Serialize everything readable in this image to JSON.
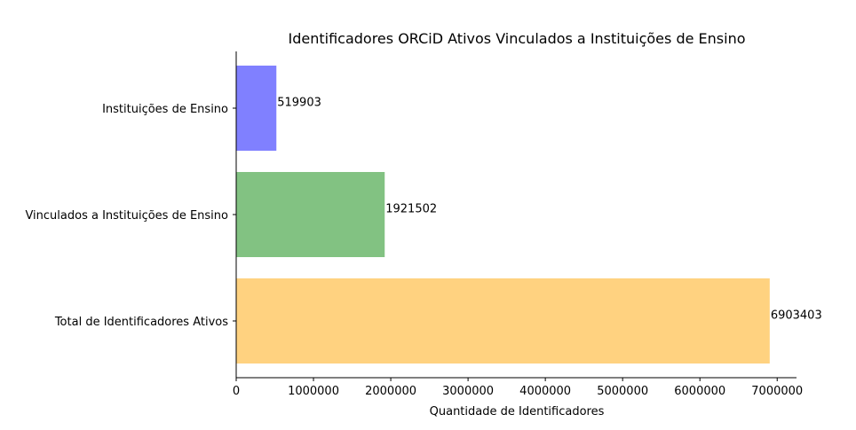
{
  "chart_data": {
    "type": "bar",
    "orientation": "horizontal",
    "title": "Identificadores ORCiD Ativos Vinculados a Instituições de Ensino",
    "xlabel": "Quantidade de Identificadores",
    "ylabel": "",
    "categories": [
      "Total de Identificadores Ativos",
      "Vinculados a Instituições de Ensino",
      "Instituições de Ensino"
    ],
    "values": [
      6903403,
      1921502,
      519903
    ],
    "data_labels": [
      "6903403",
      "1921502",
      "519903"
    ],
    "colors": [
      "#ffd280",
      "#82c282",
      "#8080ff"
    ],
    "xlim": [
      0,
      7250000
    ],
    "xticks": [
      0,
      1000000,
      2000000,
      3000000,
      4000000,
      5000000,
      6000000,
      7000000
    ],
    "xtick_labels": [
      "0",
      "1000000",
      "2000000",
      "3000000",
      "4000000",
      "5000000",
      "6000000",
      "7000000"
    ],
    "grid": false,
    "legend": "none"
  }
}
